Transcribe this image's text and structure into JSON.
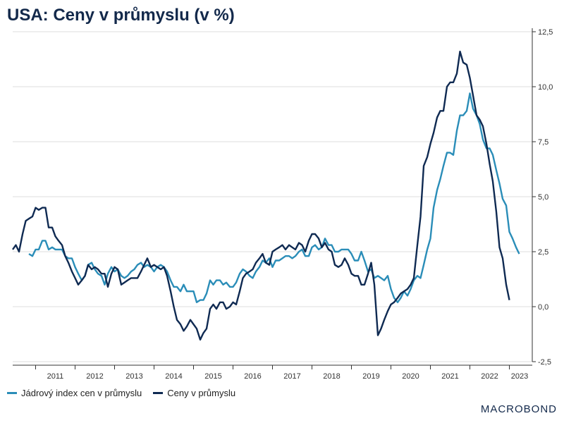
{
  "brand": "MACROBOND",
  "colors": {
    "core": "#2a8db8",
    "headline": "#0f2a52",
    "grid": "#dddddd",
    "axis": "#333333"
  },
  "chart_data": {
    "type": "line",
    "title": "USA: Ceny v průmyslu (v %)",
    "xlabel": "",
    "ylabel": "",
    "x_range": [
      2010.42,
      2023.58
    ],
    "ylim": [
      -2.5,
      12.5
    ],
    "y_ticks": [
      12.5,
      10.0,
      7.5,
      5.0,
      2.5,
      0.0,
      -2.5
    ],
    "y_tick_labels": [
      "12,5",
      "10,0",
      "7,5",
      "5,0",
      "2,5",
      "0,0",
      "-2,5"
    ],
    "x_tick_labels": [
      "2011",
      "2012",
      "2013",
      "2014",
      "2015",
      "2016",
      "2017",
      "2018",
      "2019",
      "2020",
      "2021",
      "2022",
      "2023"
    ],
    "grid": true,
    "legend_position": "bottom-left",
    "series": [
      {
        "name": "Jádrový index cen v průmyslu",
        "color": "#2a8db8",
        "points": [
          [
            2010.83,
            2.4
          ],
          [
            2010.92,
            2.3
          ],
          [
            2011.0,
            2.6
          ],
          [
            2011.08,
            2.6
          ],
          [
            2011.17,
            3.0
          ],
          [
            2011.25,
            3.0
          ],
          [
            2011.33,
            2.6
          ],
          [
            2011.42,
            2.7
          ],
          [
            2011.5,
            2.6
          ],
          [
            2011.58,
            2.6
          ],
          [
            2011.67,
            2.6
          ],
          [
            2011.75,
            2.3
          ],
          [
            2011.83,
            2.2
          ],
          [
            2011.92,
            2.2
          ],
          [
            2012.0,
            1.8
          ],
          [
            2012.08,
            1.5
          ],
          [
            2012.17,
            1.2
          ],
          [
            2012.25,
            1.4
          ],
          [
            2012.33,
            1.9
          ],
          [
            2012.42,
            2.0
          ],
          [
            2012.5,
            1.7
          ],
          [
            2012.58,
            1.5
          ],
          [
            2012.67,
            1.4
          ],
          [
            2012.75,
            1.0
          ],
          [
            2012.83,
            1.5
          ],
          [
            2012.92,
            1.8
          ],
          [
            2013.0,
            1.6
          ],
          [
            2013.08,
            1.7
          ],
          [
            2013.17,
            1.4
          ],
          [
            2013.25,
            1.3
          ],
          [
            2013.33,
            1.4
          ],
          [
            2013.42,
            1.6
          ],
          [
            2013.5,
            1.7
          ],
          [
            2013.58,
            1.9
          ],
          [
            2013.67,
            2.0
          ],
          [
            2013.75,
            1.8
          ],
          [
            2013.83,
            1.9
          ],
          [
            2013.92,
            1.8
          ],
          [
            2014.0,
            1.6
          ],
          [
            2014.08,
            1.8
          ],
          [
            2014.17,
            1.9
          ],
          [
            2014.25,
            1.8
          ],
          [
            2014.33,
            1.6
          ],
          [
            2014.42,
            1.2
          ],
          [
            2014.5,
            0.9
          ],
          [
            2014.58,
            0.9
          ],
          [
            2014.67,
            0.7
          ],
          [
            2014.75,
            1.0
          ],
          [
            2014.83,
            0.7
          ],
          [
            2014.92,
            0.7
          ],
          [
            2015.0,
            0.7
          ],
          [
            2015.08,
            0.2
          ],
          [
            2015.17,
            0.3
          ],
          [
            2015.25,
            0.3
          ],
          [
            2015.33,
            0.6
          ],
          [
            2015.42,
            1.2
          ],
          [
            2015.5,
            1.0
          ],
          [
            2015.58,
            1.2
          ],
          [
            2015.67,
            1.2
          ],
          [
            2015.75,
            1.0
          ],
          [
            2015.83,
            1.1
          ],
          [
            2015.92,
            0.9
          ],
          [
            2016.0,
            0.9
          ],
          [
            2016.08,
            1.1
          ],
          [
            2016.17,
            1.5
          ],
          [
            2016.25,
            1.7
          ],
          [
            2016.33,
            1.6
          ],
          [
            2016.42,
            1.4
          ],
          [
            2016.5,
            1.3
          ],
          [
            2016.58,
            1.6
          ],
          [
            2016.67,
            1.8
          ],
          [
            2016.75,
            2.1
          ],
          [
            2016.83,
            2.0
          ],
          [
            2016.92,
            2.2
          ],
          [
            2017.0,
            1.8
          ],
          [
            2017.08,
            2.1
          ],
          [
            2017.17,
            2.1
          ],
          [
            2017.25,
            2.2
          ],
          [
            2017.33,
            2.3
          ],
          [
            2017.42,
            2.3
          ],
          [
            2017.5,
            2.2
          ],
          [
            2017.58,
            2.3
          ],
          [
            2017.67,
            2.5
          ],
          [
            2017.75,
            2.6
          ],
          [
            2017.83,
            2.3
          ],
          [
            2017.92,
            2.3
          ],
          [
            2018.0,
            2.7
          ],
          [
            2018.08,
            2.8
          ],
          [
            2018.17,
            2.6
          ],
          [
            2018.25,
            2.7
          ],
          [
            2018.33,
            3.1
          ],
          [
            2018.42,
            2.8
          ],
          [
            2018.5,
            2.8
          ],
          [
            2018.58,
            2.5
          ],
          [
            2018.67,
            2.5
          ],
          [
            2018.75,
            2.6
          ],
          [
            2018.83,
            2.6
          ],
          [
            2018.92,
            2.6
          ],
          [
            2019.0,
            2.4
          ],
          [
            2019.08,
            2.1
          ],
          [
            2019.17,
            2.1
          ],
          [
            2019.25,
            2.5
          ],
          [
            2019.33,
            2.1
          ],
          [
            2019.42,
            1.6
          ],
          [
            2019.5,
            1.7
          ],
          [
            2019.58,
            1.3
          ],
          [
            2019.67,
            1.4
          ],
          [
            2019.75,
            1.3
          ],
          [
            2019.83,
            1.2
          ],
          [
            2019.92,
            1.4
          ],
          [
            2020.0,
            0.8
          ],
          [
            2020.08,
            0.4
          ],
          [
            2020.17,
            0.2
          ],
          [
            2020.25,
            0.4
          ],
          [
            2020.33,
            0.7
          ],
          [
            2020.42,
            0.5
          ],
          [
            2020.5,
            0.8
          ],
          [
            2020.58,
            1.2
          ],
          [
            2020.67,
            1.4
          ],
          [
            2020.75,
            1.3
          ],
          [
            2020.83,
            1.9
          ],
          [
            2020.92,
            2.6
          ],
          [
            2021.0,
            3.1
          ],
          [
            2021.08,
            4.5
          ],
          [
            2021.17,
            5.3
          ],
          [
            2021.25,
            5.8
          ],
          [
            2021.33,
            6.4
          ],
          [
            2021.42,
            7.0
          ],
          [
            2021.5,
            7.0
          ],
          [
            2021.58,
            6.9
          ],
          [
            2021.67,
            8.0
          ],
          [
            2021.75,
            8.7
          ],
          [
            2021.83,
            8.7
          ],
          [
            2021.92,
            8.9
          ],
          [
            2022.0,
            9.7
          ],
          [
            2022.08,
            9.0
          ],
          [
            2022.17,
            8.7
          ],
          [
            2022.25,
            8.3
          ],
          [
            2022.33,
            7.6
          ],
          [
            2022.42,
            7.2
          ],
          [
            2022.5,
            7.2
          ],
          [
            2022.58,
            6.9
          ],
          [
            2022.67,
            6.2
          ],
          [
            2022.75,
            5.6
          ],
          [
            2022.83,
            4.9
          ],
          [
            2022.92,
            4.6
          ],
          [
            2023.0,
            3.4
          ],
          [
            2023.08,
            3.1
          ],
          [
            2023.17,
            2.7
          ],
          [
            2023.25,
            2.4
          ]
        ]
      },
      {
        "name": "Ceny v průmyslu",
        "color": "#0f2a52",
        "points": [
          [
            2010.42,
            2.6
          ],
          [
            2010.5,
            2.8
          ],
          [
            2010.58,
            2.5
          ],
          [
            2010.67,
            3.3
          ],
          [
            2010.75,
            3.9
          ],
          [
            2010.83,
            4.0
          ],
          [
            2010.92,
            4.1
          ],
          [
            2011.0,
            4.5
          ],
          [
            2011.08,
            4.4
          ],
          [
            2011.17,
            4.5
          ],
          [
            2011.25,
            4.5
          ],
          [
            2011.33,
            3.6
          ],
          [
            2011.42,
            3.6
          ],
          [
            2011.5,
            3.2
          ],
          [
            2011.58,
            3.0
          ],
          [
            2011.67,
            2.8
          ],
          [
            2011.75,
            2.3
          ],
          [
            2011.83,
            2.0
          ],
          [
            2011.92,
            1.6
          ],
          [
            2012.0,
            1.3
          ],
          [
            2012.08,
            1.0
          ],
          [
            2012.17,
            1.2
          ],
          [
            2012.25,
            1.4
          ],
          [
            2012.33,
            1.9
          ],
          [
            2012.42,
            1.7
          ],
          [
            2012.5,
            1.8
          ],
          [
            2012.58,
            1.7
          ],
          [
            2012.67,
            1.5
          ],
          [
            2012.75,
            1.5
          ],
          [
            2012.83,
            0.9
          ],
          [
            2012.92,
            1.5
          ],
          [
            2013.0,
            1.8
          ],
          [
            2013.08,
            1.7
          ],
          [
            2013.17,
            1.0
          ],
          [
            2013.25,
            1.1
          ],
          [
            2013.33,
            1.2
          ],
          [
            2013.42,
            1.3
          ],
          [
            2013.5,
            1.3
          ],
          [
            2013.58,
            1.3
          ],
          [
            2013.67,
            1.6
          ],
          [
            2013.75,
            1.9
          ],
          [
            2013.83,
            2.2
          ],
          [
            2013.92,
            1.8
          ],
          [
            2014.0,
            1.9
          ],
          [
            2014.08,
            1.8
          ],
          [
            2014.17,
            1.7
          ],
          [
            2014.25,
            1.8
          ],
          [
            2014.33,
            1.4
          ],
          [
            2014.42,
            0.7
          ],
          [
            2014.5,
            0.0
          ],
          [
            2014.58,
            -0.6
          ],
          [
            2014.67,
            -0.8
          ],
          [
            2014.75,
            -1.1
          ],
          [
            2014.83,
            -0.9
          ],
          [
            2014.92,
            -0.6
          ],
          [
            2015.0,
            -0.8
          ],
          [
            2015.08,
            -1.0
          ],
          [
            2015.17,
            -1.5
          ],
          [
            2015.25,
            -1.2
          ],
          [
            2015.33,
            -1.0
          ],
          [
            2015.42,
            -0.1
          ],
          [
            2015.5,
            0.1
          ],
          [
            2015.58,
            -0.1
          ],
          [
            2015.67,
            0.2
          ],
          [
            2015.75,
            0.2
          ],
          [
            2015.83,
            -0.1
          ],
          [
            2015.92,
            0.0
          ],
          [
            2016.0,
            0.2
          ],
          [
            2016.08,
            0.1
          ],
          [
            2016.17,
            0.7
          ],
          [
            2016.25,
            1.3
          ],
          [
            2016.33,
            1.5
          ],
          [
            2016.42,
            1.6
          ],
          [
            2016.5,
            1.7
          ],
          [
            2016.58,
            2.0
          ],
          [
            2016.67,
            2.2
          ],
          [
            2016.75,
            2.4
          ],
          [
            2016.83,
            2.0
          ],
          [
            2016.92,
            1.9
          ],
          [
            2017.0,
            2.5
          ],
          [
            2017.08,
            2.6
          ],
          [
            2017.17,
            2.7
          ],
          [
            2017.25,
            2.8
          ],
          [
            2017.33,
            2.6
          ],
          [
            2017.42,
            2.8
          ],
          [
            2017.5,
            2.7
          ],
          [
            2017.58,
            2.6
          ],
          [
            2017.67,
            2.9
          ],
          [
            2017.75,
            2.8
          ],
          [
            2017.83,
            2.5
          ],
          [
            2017.92,
            3.0
          ],
          [
            2018.0,
            3.3
          ],
          [
            2018.08,
            3.3
          ],
          [
            2018.17,
            3.1
          ],
          [
            2018.25,
            2.7
          ],
          [
            2018.33,
            2.9
          ],
          [
            2018.42,
            2.6
          ],
          [
            2018.5,
            2.5
          ],
          [
            2018.58,
            1.9
          ],
          [
            2018.67,
            1.8
          ],
          [
            2018.75,
            1.9
          ],
          [
            2018.83,
            2.2
          ],
          [
            2018.92,
            1.9
          ],
          [
            2019.0,
            1.5
          ],
          [
            2019.08,
            1.4
          ],
          [
            2019.17,
            1.4
          ],
          [
            2019.25,
            1.0
          ],
          [
            2019.33,
            1.0
          ],
          [
            2019.42,
            1.5
          ],
          [
            2019.5,
            2.0
          ],
          [
            2019.58,
            1.0
          ],
          [
            2019.67,
            -1.3
          ],
          [
            2019.75,
            -1.0
          ],
          [
            2019.83,
            -0.6
          ],
          [
            2019.92,
            -0.2
          ],
          [
            2020.0,
            0.1
          ],
          [
            2020.08,
            0.2
          ],
          [
            2020.17,
            0.4
          ],
          [
            2020.25,
            0.6
          ],
          [
            2020.33,
            0.7
          ],
          [
            2020.42,
            0.8
          ],
          [
            2020.5,
            1.0
          ],
          [
            2020.58,
            1.3
          ],
          [
            2020.67,
            2.8
          ],
          [
            2020.75,
            4.1
          ],
          [
            2020.83,
            6.4
          ],
          [
            2020.92,
            6.8
          ],
          [
            2021.0,
            7.4
          ],
          [
            2021.08,
            7.9
          ],
          [
            2021.17,
            8.6
          ],
          [
            2021.25,
            8.9
          ],
          [
            2021.33,
            8.9
          ],
          [
            2021.42,
            10.0
          ],
          [
            2021.5,
            10.2
          ],
          [
            2021.58,
            10.2
          ],
          [
            2021.67,
            10.6
          ],
          [
            2021.75,
            11.6
          ],
          [
            2021.83,
            11.1
          ],
          [
            2021.92,
            11.0
          ],
          [
            2022.0,
            10.4
          ],
          [
            2022.08,
            9.6
          ],
          [
            2022.17,
            8.7
          ],
          [
            2022.25,
            8.5
          ],
          [
            2022.33,
            8.2
          ],
          [
            2022.42,
            7.4
          ],
          [
            2022.5,
            6.5
          ],
          [
            2022.58,
            5.7
          ],
          [
            2022.67,
            4.3
          ],
          [
            2022.75,
            2.7
          ],
          [
            2022.83,
            2.2
          ],
          [
            2022.92,
            1.0
          ],
          [
            2023.0,
            0.3
          ]
        ]
      }
    ]
  }
}
